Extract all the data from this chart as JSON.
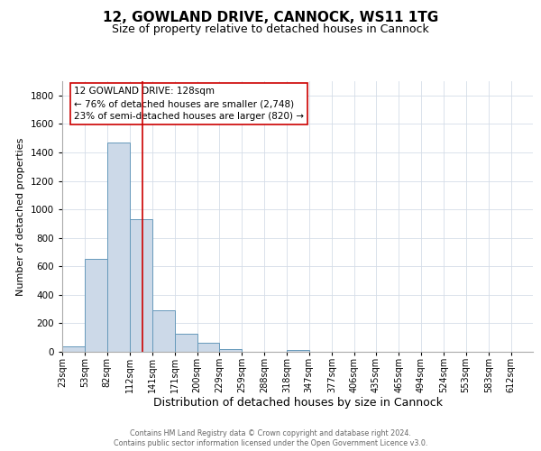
{
  "title": "12, GOWLAND DRIVE, CANNOCK, WS11 1TG",
  "subtitle": "Size of property relative to detached houses in Cannock",
  "xlabel": "Distribution of detached houses by size in Cannock",
  "ylabel": "Number of detached properties",
  "bin_edges": [
    23,
    53,
    82,
    112,
    141,
    171,
    200,
    229,
    259,
    288,
    318,
    347,
    377,
    406,
    435,
    465,
    494,
    524,
    553,
    583,
    612
  ],
  "bar_heights": [
    40,
    650,
    1470,
    930,
    290,
    125,
    65,
    20,
    0,
    0,
    15,
    0,
    0,
    0,
    0,
    0,
    0,
    0,
    0,
    0
  ],
  "bar_color": "#ccd9e8",
  "bar_edge_color": "#6699bb",
  "red_line_x": 128,
  "ylim": [
    0,
    1900
  ],
  "yticks": [
    0,
    200,
    400,
    600,
    800,
    1000,
    1200,
    1400,
    1600,
    1800
  ],
  "annotation_title": "12 GOWLAND DRIVE: 128sqm",
  "annotation_line1": "← 76% of detached houses are smaller (2,748)",
  "annotation_line2": "23% of semi-detached houses are larger (820) →",
  "annotation_box_color": "#ffffff",
  "annotation_box_edge": "#cc0000",
  "footnote1": "Contains HM Land Registry data © Crown copyright and database right 2024.",
  "footnote2": "Contains public sector information licensed under the Open Government Licence v3.0.",
  "background_color": "#ffffff",
  "grid_color": "#d4dde8",
  "title_fontsize": 11,
  "subtitle_fontsize": 9,
  "tick_label_fontsize": 7,
  "xlabel_fontsize": 9,
  "ylabel_fontsize": 8,
  "annotation_fontsize": 7.5,
  "footnote_fontsize": 5.8
}
